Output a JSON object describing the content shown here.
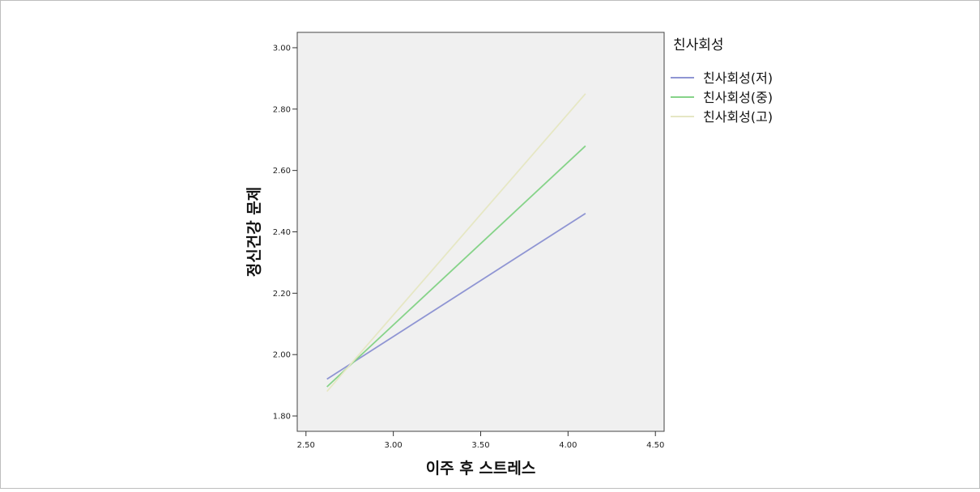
{
  "chart_data": {
    "type": "line",
    "title": "",
    "xlabel": "이주 후 스트레스",
    "ylabel": "정신건강 문제",
    "xlim": [
      2.45,
      4.55
    ],
    "ylim": [
      1.75,
      3.05
    ],
    "xticks": [
      2.5,
      3.0,
      3.5,
      4.0,
      4.5
    ],
    "xtick_labels": [
      "2.50",
      "3.00",
      "3.50",
      "4.00",
      "4.50"
    ],
    "yticks": [
      1.8,
      2.0,
      2.2,
      2.4,
      2.6,
      2.8,
      3.0
    ],
    "ytick_labels": [
      "1.80",
      "2.00",
      "2.20",
      "2.40",
      "2.60",
      "2.80",
      "3.00"
    ],
    "grid": false,
    "legend": {
      "title": "친사회성",
      "placement": "right"
    },
    "series": [
      {
        "name": "친사회성(저)",
        "color": "#8f95d3",
        "x": [
          2.62,
          4.1
        ],
        "y": [
          1.92,
          2.46
        ]
      },
      {
        "name": "친사회성(중)",
        "color": "#86d389",
        "x": [
          2.62,
          4.1
        ],
        "y": [
          1.895,
          2.68
        ]
      },
      {
        "name": "친사회성(고)",
        "color": "#e6e7c4",
        "x": [
          2.62,
          4.1
        ],
        "y": [
          1.88,
          2.85
        ]
      }
    ]
  }
}
